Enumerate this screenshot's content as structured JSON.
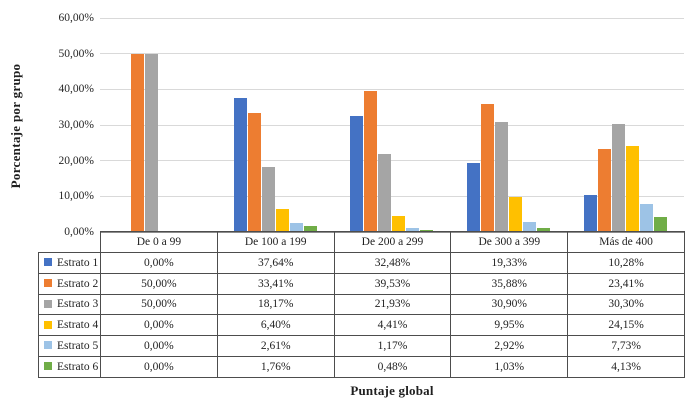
{
  "chart_data": {
    "type": "bar",
    "title": "",
    "xlabel": "Puntaje global",
    "ylabel": "Porcentaje por grupo",
    "categories": [
      "De 0 a 99",
      "De 100 a 199",
      "De 200 a 299",
      "De 300 a 399",
      "Más de 400"
    ],
    "ylim": [
      0,
      60
    ],
    "y_tick_step": 10,
    "y_tick_labels": [
      "0,00%",
      "10,00%",
      "20,00%",
      "30,00%",
      "40,00%",
      "50,00%",
      "60,00%"
    ],
    "grid": true,
    "legend_position": "table-left-column",
    "colors": {
      "gridline": "#d9d9d9",
      "axis_line": "#8c8c8c",
      "table_border": "#4d4d4d"
    },
    "series": [
      {
        "name": "Estrato 1",
        "color": "#4472C4",
        "values": [
          0.0,
          37.64,
          32.48,
          19.33,
          10.28
        ],
        "labels": [
          "0,00%",
          "37,64%",
          "32,48%",
          "19,33%",
          "10,28%"
        ]
      },
      {
        "name": "Estrato 2",
        "color": "#ED7D31",
        "values": [
          50.0,
          33.41,
          39.53,
          35.88,
          23.41
        ],
        "labels": [
          "50,00%",
          "33,41%",
          "39,53%",
          "35,88%",
          "23,41%"
        ]
      },
      {
        "name": "Estrato 3",
        "color": "#A5A5A5",
        "values": [
          50.0,
          18.17,
          21.93,
          30.9,
          30.3
        ],
        "labels": [
          "50,00%",
          "18,17%",
          "21,93%",
          "30,90%",
          "30,30%"
        ]
      },
      {
        "name": "Estrato 4",
        "color": "#FFC000",
        "values": [
          0.0,
          6.4,
          4.41,
          9.95,
          24.15
        ],
        "labels": [
          "0,00%",
          "6,40%",
          "4,41%",
          "9,95%",
          "24,15%"
        ]
      },
      {
        "name": "Estrato 5",
        "color": "#9DC3E6",
        "values": [
          0.0,
          2.61,
          1.17,
          2.92,
          7.73
        ],
        "labels": [
          "0,00%",
          "2,61%",
          "1,17%",
          "2,92%",
          "7,73%"
        ]
      },
      {
        "name": "Estrato 6",
        "color": "#70AD47",
        "values": [
          0.0,
          1.76,
          0.48,
          1.03,
          4.13
        ],
        "labels": [
          "0,00%",
          "1,76%",
          "0,48%",
          "1,03%",
          "4,13%"
        ]
      }
    ]
  }
}
